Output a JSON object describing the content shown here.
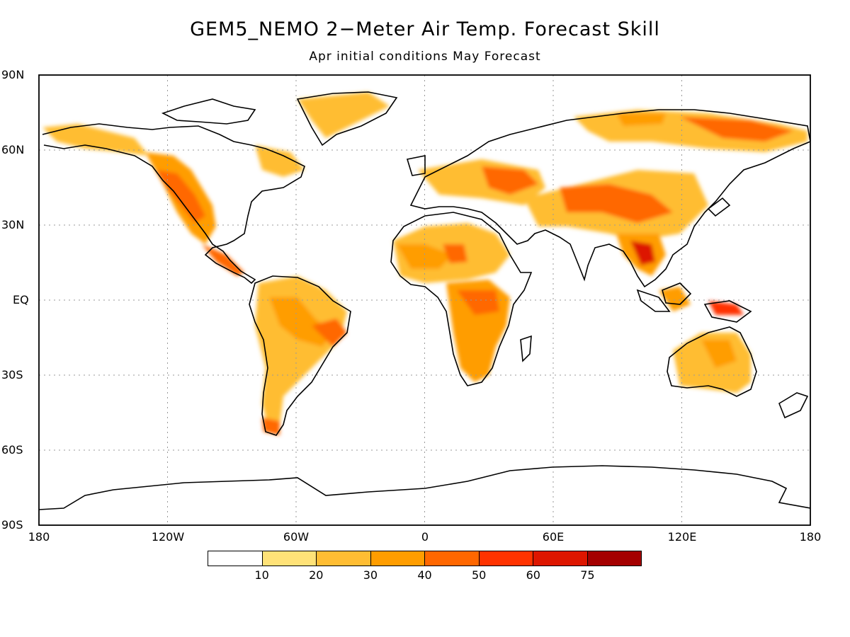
{
  "title": "GEM5_NEMO 2−Meter Air Temp. Forecast Skill",
  "subtitle": "Apr initial conditions  May Forecast",
  "lat_labels": [
    "90N",
    "60N",
    "30N",
    "EQ",
    "30S",
    "60S",
    "90S"
  ],
  "lon_labels": [
    "180",
    "120W",
    "60W",
    "0",
    "60E",
    "120E",
    "180"
  ],
  "colorbar": {
    "colors": [
      "#ffffff",
      "#ffe278",
      "#ffbd33",
      "#ff9d00",
      "#ff6700",
      "#ff3300",
      "#dd1600",
      "#a40000"
    ],
    "labels": [
      "10",
      "20",
      "30",
      "40",
      "50",
      "60",
      "75"
    ]
  },
  "map": {
    "projection": "cylindrical equidistant",
    "lon_range": [
      -180,
      180
    ],
    "lat_range": [
      -90,
      90
    ],
    "grid": "dotted, every 30 degrees"
  }
}
